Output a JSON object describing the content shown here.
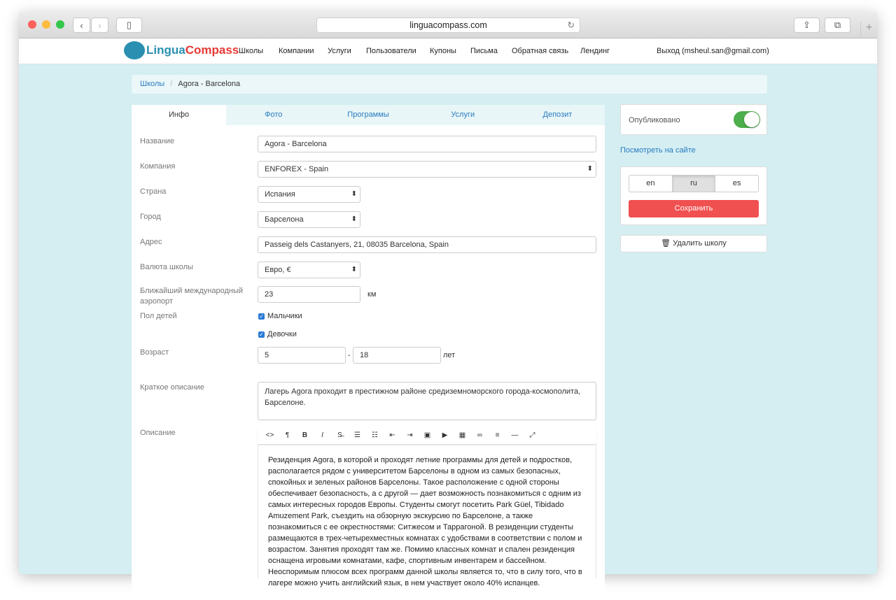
{
  "browser": {
    "url": "linguacompass.com"
  },
  "nav": {
    "logo": "LinguaCompass",
    "logo_part1": "Lingua",
    "logo_part2": "Compass",
    "items": [
      "Школы",
      "Компании",
      "Услуги",
      "Пользователи",
      "Купоны",
      "Письма",
      "Обратная связь",
      "Лендинг"
    ],
    "logout": "Выход (msheul.san@gmail.com)"
  },
  "breadcrumb": {
    "parent": "Школы",
    "current": "Agora - Barcelona"
  },
  "tabs": [
    "Инфо",
    "Фото",
    "Программы",
    "Услуги",
    "Депозит"
  ],
  "form": {
    "name_label": "Название",
    "name": "Agora - Barcelona",
    "company_label": "Компания",
    "company": "ENFOREX - Spain",
    "country_label": "Страна",
    "country": "Испания",
    "city_label": "Город",
    "city": "Барселона",
    "address_label": "Адрес",
    "address": "Passeig dels Castanyers, 21, 08035 Barcelona, Spain",
    "currency_label": "Валюта школы",
    "currency": "Евро, €",
    "airport_label": "Ближайший международный аэропорт",
    "airport": "23",
    "airport_unit": "км",
    "gender_label": "Пол детей",
    "boys": "Мальчики",
    "girls": "Девочки",
    "boys_checked": true,
    "girls_checked": true,
    "age_label": "Возраст",
    "age_from": "5",
    "age_sep": "-",
    "age_to": "18",
    "age_unit": "лет",
    "short_label": "Краткое описание",
    "short": "Лагерь Agora проходит в престижном районе средиземноморского города-космополита, Барселоне.",
    "desc_label": "Описание",
    "toolbar": [
      "<>",
      "¶",
      "B",
      "I",
      "S̶",
      "☰",
      "☷",
      "⇤",
      "⇥",
      "▣",
      "▶",
      "▦",
      "∞",
      "≡",
      "—",
      "⤢"
    ],
    "desc": "Резиденция Agora, в которой и проходят летние программы для детей и подростков, располагается рядом с университетом Барселоны в одном из самых безопасных, спокойных и зеленых районов Барселоны. Такое расположение с одной стороны обеспечивает безопасность, а с другой — дает возможность познакомиться с одним из самых интересных городов Европы. Студенты смогут посетить Park Güel, Tibidado Amuzement Park, съездить на обзорную экскурсию по Барселоне, а также познакомиться с ее окрестностями: Ситжесом и Таррагоной. В резиденции студенты размещаются в трех-четырехместных комнатах с удобствами в соответствии с полом и возрастом. Занятия проходят там же. Помимо классных комнат и спален резиденция оснащена игровыми комнатами, кафе, спортивным инвентарем и бассейном. Неоспоримым плюсом всех программ данной школы является то, что в силу того, что в лагере можно учить английский язык, в нем участвует около 40% испанцев."
  },
  "side": {
    "published_label": "Опубликовано",
    "published": true,
    "view_link": "Посмотреть на сайте",
    "langs": [
      "en",
      "ru",
      "es"
    ],
    "active_lang": "ru",
    "save": "Сохранить",
    "delete": "Удалить школу"
  },
  "colors": {
    "accent": "#2a7bbf",
    "save": "#f05050",
    "toggle": "#4cae4c",
    "bg": "#d4eef2"
  }
}
